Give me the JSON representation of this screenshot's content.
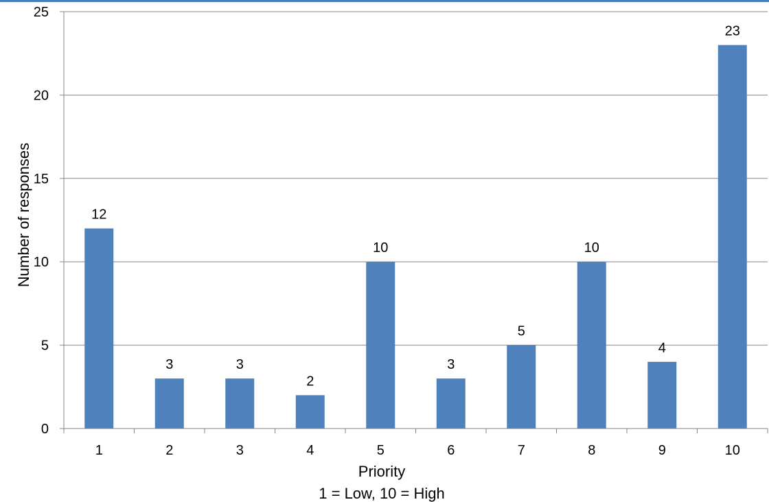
{
  "chart_data": {
    "type": "bar",
    "categories": [
      "1",
      "2",
      "3",
      "4",
      "5",
      "6",
      "7",
      "8",
      "9",
      "10"
    ],
    "values": [
      12,
      3,
      3,
      2,
      10,
      3,
      5,
      10,
      4,
      23
    ],
    "xlabel": "Priority",
    "xlabel_sub": "1 = Low, 10 = High",
    "ylabel": "Number of responses",
    "ylim": [
      0,
      25
    ],
    "yticks": [
      0,
      5,
      10,
      15,
      20,
      25
    ],
    "grid": true,
    "bar_color": "#4f81bd",
    "data_labels": true
  }
}
